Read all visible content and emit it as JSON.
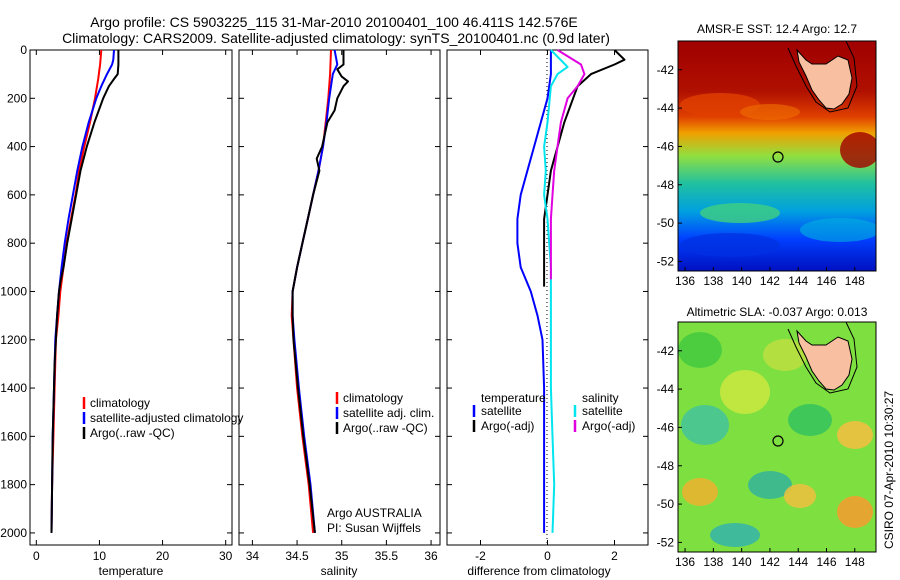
{
  "title": {
    "line1": "Argo profile: CS 5903225_115 31-Mar-2010 20100401_100 46.411S 142.576E",
    "line2": "Climatology: CARS2009. Satellite-adjusted climatology: synTS_20100401.nc (0.9d later)"
  },
  "stamp": "CSIRO 07-Apr-2010 10:30:27",
  "credit": {
    "line1": "Argo AUSTRALIA",
    "line2": "PI: Susan Wijffels"
  },
  "colors": {
    "climatology": "#ff0000",
    "satellite": "#0000ff",
    "argo": "#000000",
    "sat_diff_sal": "#00e5ee",
    "argo_diff_sal": "#e000e0"
  },
  "chart_data": [
    {
      "type": "line",
      "xlabel": "temperature",
      "xlim": [
        -1,
        31
      ],
      "xticks": [
        0,
        10,
        20,
        30
      ],
      "ylim": [
        0,
        2050
      ],
      "yticks": [
        0,
        200,
        400,
        600,
        800,
        1000,
        1200,
        1400,
        1600,
        1800,
        2000
      ],
      "y_reversed": true,
      "legend": [
        "climatology",
        "satellite-adjusted climatology",
        "Argo(..raw -QC)"
      ],
      "series": [
        {
          "name": "climatology",
          "color": "#ff0000",
          "points": [
            [
              10.3,
              0
            ],
            [
              10.1,
              60
            ],
            [
              9.8,
              120
            ],
            [
              9.3,
              200
            ],
            [
              8.5,
              300
            ],
            [
              7.6,
              400
            ],
            [
              6.8,
              500
            ],
            [
              6.2,
              600
            ],
            [
              5.5,
              700
            ],
            [
              4.8,
              800
            ],
            [
              4.3,
              900
            ],
            [
              3.8,
              1000
            ],
            [
              3.5,
              1100
            ],
            [
              3.1,
              1200
            ],
            [
              2.9,
              1400
            ],
            [
              2.7,
              1600
            ],
            [
              2.5,
              1800
            ],
            [
              2.4,
              2000
            ]
          ]
        },
        {
          "name": "satellite-adjusted climatology",
          "color": "#0000ff",
          "points": [
            [
              12.3,
              0
            ],
            [
              12.2,
              40
            ],
            [
              12.0,
              60
            ],
            [
              11.2,
              100
            ],
            [
              10.3,
              150
            ],
            [
              9.5,
              200
            ],
            [
              8.3,
              300
            ],
            [
              7.3,
              400
            ],
            [
              6.5,
              500
            ],
            [
              5.8,
              600
            ],
            [
              5.1,
              700
            ],
            [
              4.5,
              800
            ],
            [
              4.0,
              900
            ],
            [
              3.6,
              1000
            ],
            [
              3.3,
              1100
            ],
            [
              3.0,
              1200
            ],
            [
              2.8,
              1400
            ],
            [
              2.6,
              1600
            ],
            [
              2.5,
              1800
            ],
            [
              2.4,
              2000
            ]
          ]
        },
        {
          "name": "Argo(..raw -QC)",
          "color": "#000000",
          "points": [
            [
              13.0,
              0
            ],
            [
              13.0,
              60
            ],
            [
              12.9,
              100
            ],
            [
              12.3,
              120
            ],
            [
              11.5,
              150
            ],
            [
              10.6,
              200
            ],
            [
              9.2,
              300
            ],
            [
              8.0,
              400
            ],
            [
              7.0,
              500
            ],
            [
              6.3,
              600
            ],
            [
              5.6,
              700
            ],
            [
              4.9,
              800
            ],
            [
              4.3,
              900
            ],
            [
              3.9,
              950
            ],
            [
              3.6,
              1000
            ],
            [
              3.3,
              1100
            ],
            [
              3.1,
              1200
            ],
            [
              2.9,
              1300
            ],
            [
              2.8,
              1400
            ],
            [
              2.6,
              1600
            ],
            [
              2.5,
              1800
            ],
            [
              2.4,
              2000
            ]
          ]
        }
      ]
    },
    {
      "type": "line",
      "xlabel": "salinity",
      "xlim": [
        33.85,
        36.1
      ],
      "xticks": [
        34,
        34.5,
        35,
        35.5,
        36
      ],
      "ylim": [
        0,
        2050
      ],
      "yticks": [
        0,
        200,
        400,
        600,
        800,
        1000,
        1200,
        1400,
        1600,
        1800,
        2000
      ],
      "y_reversed": true,
      "legend": [
        "climatology",
        "satellite adj. clim.",
        "Argo(..raw -QC)"
      ],
      "series": [
        {
          "name": "climatology",
          "color": "#ff0000",
          "points": [
            [
              34.88,
              0
            ],
            [
              34.87,
              100
            ],
            [
              34.85,
              200
            ],
            [
              34.82,
              300
            ],
            [
              34.79,
              400
            ],
            [
              34.74,
              500
            ],
            [
              34.68,
              600
            ],
            [
              34.62,
              700
            ],
            [
              34.56,
              800
            ],
            [
              34.5,
              900
            ],
            [
              34.45,
              1000
            ],
            [
              34.44,
              1100
            ],
            [
              34.46,
              1200
            ],
            [
              34.5,
              1400
            ],
            [
              34.56,
              1600
            ],
            [
              34.63,
              1800
            ],
            [
              34.68,
              2000
            ]
          ]
        },
        {
          "name": "satellite adj. clim.",
          "color": "#0000ff",
          "points": [
            [
              34.92,
              0
            ],
            [
              34.95,
              60
            ],
            [
              34.9,
              100
            ],
            [
              34.88,
              150
            ],
            [
              34.86,
              200
            ],
            [
              34.83,
              300
            ],
            [
              34.79,
              400
            ],
            [
              34.74,
              500
            ],
            [
              34.68,
              600
            ],
            [
              34.62,
              700
            ],
            [
              34.56,
              800
            ],
            [
              34.5,
              900
            ],
            [
              34.45,
              1000
            ],
            [
              34.45,
              1100
            ],
            [
              34.47,
              1200
            ],
            [
              34.52,
              1400
            ],
            [
              34.58,
              1600
            ],
            [
              34.65,
              1800
            ],
            [
              34.7,
              2000
            ]
          ]
        },
        {
          "name": "Argo(..raw -QC)",
          "color": "#000000",
          "points": [
            [
              35.02,
              0
            ],
            [
              35.02,
              60
            ],
            [
              34.95,
              80
            ],
            [
              35.0,
              110
            ],
            [
              35.07,
              130
            ],
            [
              35.02,
              150
            ],
            [
              34.95,
              200
            ],
            [
              34.92,
              250
            ],
            [
              34.84,
              300
            ],
            [
              34.78,
              400
            ],
            [
              34.72,
              450
            ],
            [
              34.75,
              500
            ],
            [
              34.68,
              600
            ],
            [
              34.62,
              700
            ],
            [
              34.56,
              800
            ],
            [
              34.5,
              900
            ],
            [
              34.45,
              1000
            ],
            [
              34.45,
              1100
            ],
            [
              34.46,
              1200
            ],
            [
              34.51,
              1400
            ],
            [
              34.57,
              1600
            ],
            [
              34.64,
              1800
            ],
            [
              34.7,
              2000
            ]
          ]
        }
      ]
    },
    {
      "type": "line",
      "xlabel": "difference from climatology",
      "xlim": [
        -3,
        3
      ],
      "xticks": [
        -2,
        0,
        2
      ],
      "ylim": [
        0,
        2050
      ],
      "yticks": [
        0,
        200,
        400,
        600,
        800,
        1000,
        1200,
        1400,
        1600,
        1800,
        2000
      ],
      "y_reversed": true,
      "legend_temperature_header": "temperature",
      "legend_salinity_header": "salinity",
      "legend_temperature": [
        "satellite",
        "Argo(-adj)"
      ],
      "legend_salinity": [
        "satellite",
        "Argo(-adj)"
      ],
      "series": [
        {
          "name": "temperature satellite",
          "color": "#0000ff",
          "points": [
            [
              0.1,
              0
            ],
            [
              0.1,
              100
            ],
            [
              0.0,
              200
            ],
            [
              -0.2,
              300
            ],
            [
              -0.4,
              400
            ],
            [
              -0.6,
              500
            ],
            [
              -0.8,
              600
            ],
            [
              -0.9,
              700
            ],
            [
              -0.9,
              800
            ],
            [
              -0.8,
              900
            ],
            [
              -0.5,
              1000
            ],
            [
              -0.3,
              1100
            ],
            [
              -0.15,
              1200
            ],
            [
              -0.1,
              1400
            ],
            [
              -0.1,
              1600
            ],
            [
              -0.1,
              1800
            ],
            [
              -0.1,
              2000
            ]
          ]
        },
        {
          "name": "temperature Argo(-adj)",
          "color": "#000000",
          "points": [
            [
              2.0,
              0
            ],
            [
              2.3,
              40
            ],
            [
              2.0,
              60
            ],
            [
              1.3,
              100
            ],
            [
              0.9,
              150
            ],
            [
              0.5,
              300
            ],
            [
              0.1,
              500
            ],
            [
              0.0,
              600
            ],
            [
              -0.1,
              700
            ],
            [
              -0.1,
              800
            ],
            [
              -0.1,
              900
            ],
            [
              -0.1,
              980
            ]
          ]
        },
        {
          "name": "salinity satellite",
          "color": "#00e5ee",
          "points": [
            [
              0.1,
              0
            ],
            [
              0.6,
              70
            ],
            [
              0.3,
              100
            ],
            [
              0.1,
              150
            ],
            [
              0.0,
              300
            ],
            [
              -0.1,
              400
            ],
            [
              -0.05,
              500
            ],
            [
              -0.1,
              600
            ],
            [
              0.0,
              700
            ],
            [
              0.05,
              800
            ],
            [
              0.1,
              900
            ],
            [
              0.1,
              1100
            ],
            [
              0.1,
              1400
            ],
            [
              0.15,
              1600
            ],
            [
              0.2,
              1800
            ],
            [
              0.15,
              2000
            ]
          ]
        },
        {
          "name": "salinity Argo(-adj)",
          "color": "#e000e0",
          "points": [
            [
              0.3,
              0
            ],
            [
              1.0,
              60
            ],
            [
              1.1,
              100
            ],
            [
              0.9,
              150
            ],
            [
              0.6,
              200
            ],
            [
              0.4,
              300
            ],
            [
              0.3,
              400
            ],
            [
              0.2,
              500
            ],
            [
              0.15,
              600
            ],
            [
              0.1,
              700
            ],
            [
              0.1,
              800
            ],
            [
              0.1,
              900
            ],
            [
              0.1,
              950
            ]
          ]
        }
      ]
    },
    {
      "type": "heatmap",
      "title": "AMSR-E SST: 12.4 Argo: 12.7",
      "xlim": [
        135.5,
        149.5
      ],
      "ylim": [
        -52.5,
        -40.5
      ],
      "xticks": [
        136,
        138,
        140,
        142,
        144,
        146,
        148
      ],
      "yticks": [
        -42,
        -44,
        -46,
        -48,
        -50,
        -52
      ],
      "argo_position": [
        142.576,
        -46.411
      ]
    },
    {
      "type": "heatmap",
      "title": "Altimetric SLA: -0.037 Argo: 0.013",
      "xlim": [
        135.5,
        149.5
      ],
      "ylim": [
        -52.5,
        -40.5
      ],
      "xticks": [
        136,
        138,
        140,
        142,
        144,
        146,
        148
      ],
      "yticks": [
        -42,
        -44,
        -46,
        -48,
        -50,
        -52
      ],
      "argo_position": [
        142.576,
        -46.411
      ]
    }
  ]
}
